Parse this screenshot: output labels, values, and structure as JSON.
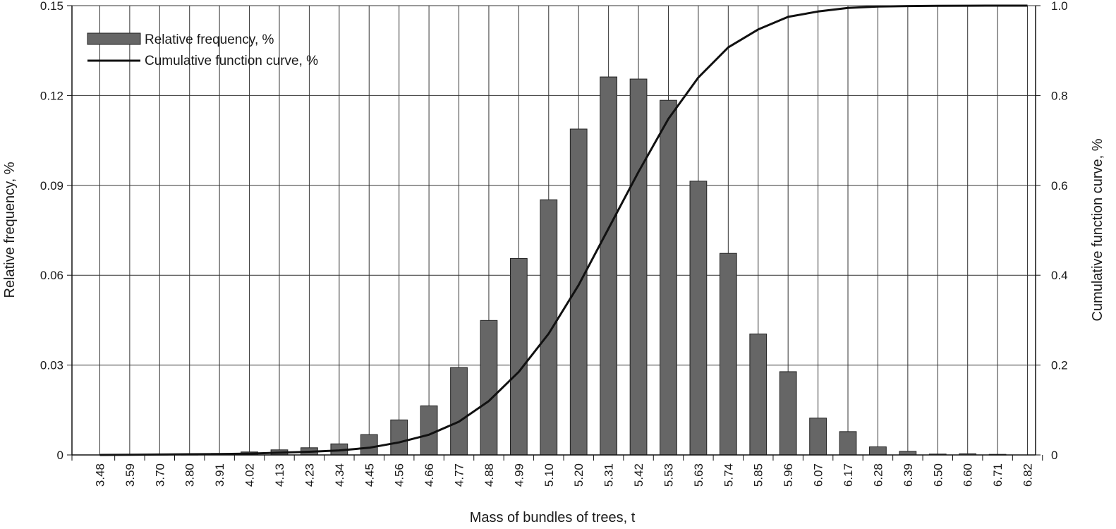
{
  "chart_data": {
    "type": "bar",
    "xlabel": "Mass of bundles of trees, t",
    "ylabel": "Relative frequency, %",
    "y2label": "Cumulative function curve, %",
    "ylim": [
      0,
      0.15
    ],
    "y2lim": [
      0,
      1.0
    ],
    "yticks": [
      "0",
      "0.03",
      "0.06",
      "0.09",
      "0.12",
      "0.15"
    ],
    "y2ticks": [
      "0",
      "0.2",
      "0.4",
      "0.6",
      "0.8",
      "1.0"
    ],
    "grid": "vertical",
    "legend_position": "top-left",
    "categories": [
      "3.48",
      "3.59",
      "3.70",
      "3.80",
      "3.91",
      "4.02",
      "4.13",
      "4.23",
      "4.34",
      "4.45",
      "4.56",
      "4.66",
      "4.77",
      "4.88",
      "4.99",
      "5.10",
      "5.20",
      "5.31",
      "5.42",
      "5.53",
      "5.63",
      "5.74",
      "5.85",
      "5.96",
      "6.07",
      "6.17",
      "6.28",
      "6.39",
      "6.50",
      "6.60",
      "6.71",
      "6.82"
    ],
    "series": [
      {
        "name": "Relative frequency, %",
        "kind": "bar",
        "axis": "left",
        "color": "#666666",
        "values": [
          0,
          0.0002,
          0.0002,
          0.0002,
          0.0005,
          0.001,
          0.0017,
          0.0024,
          0.0037,
          0.0068,
          0.0117,
          0.0164,
          0.0292,
          0.0449,
          0.0656,
          0.0852,
          0.1088,
          0.1262,
          0.1255,
          0.1184,
          0.0914,
          0.0673,
          0.0404,
          0.0278,
          0.0123,
          0.0078,
          0.0027,
          0.0012,
          0.0003,
          0.0004,
          0.0002,
          0
        ]
      },
      {
        "name": "Cumulative function curve, %",
        "kind": "line",
        "axis": "right",
        "color": "#111111",
        "values": [
          0,
          0.0005,
          0.001,
          0.0015,
          0.002,
          0.003,
          0.005,
          0.007,
          0.01,
          0.016,
          0.028,
          0.045,
          0.074,
          0.12,
          0.185,
          0.27,
          0.378,
          0.504,
          0.63,
          0.748,
          0.84,
          0.907,
          0.947,
          0.975,
          0.987,
          0.995,
          0.998,
          0.999,
          0.9995,
          0.9998,
          1.0,
          1.0
        ]
      }
    ]
  }
}
